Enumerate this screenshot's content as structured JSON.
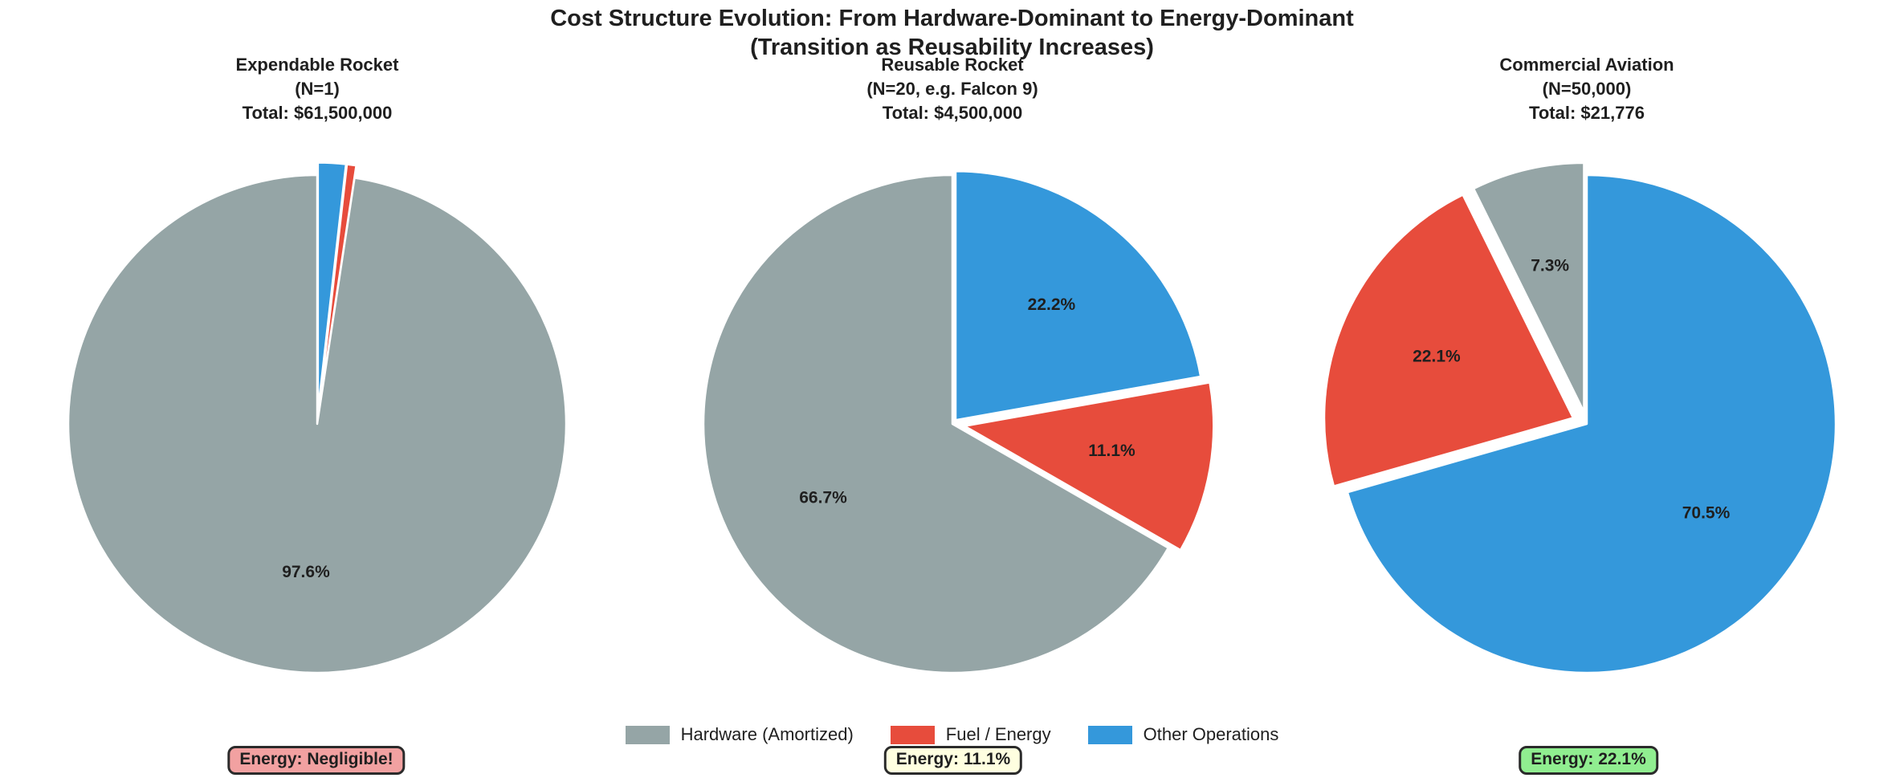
{
  "suptitle": [
    "Cost Structure Evolution: From Hardware-Dominant to Energy-Dominant",
    "(Transition as Reusability Increases)"
  ],
  "palette": [
    "#95a5a6",
    "#e74c3c",
    "#3498db"
  ],
  "legend": {
    "items": [
      {
        "label": "Hardware (Amortized)",
        "color": "#95a5a6"
      },
      {
        "label": "Fuel / Energy",
        "color": "#e74c3c"
      },
      {
        "label": "Other Operations",
        "color": "#3498db"
      }
    ]
  },
  "chart_data": [
    {
      "type": "pie",
      "title": [
        "Expendable Rocket",
        "(N=1)",
        "Total: $61,500,000"
      ],
      "categories": [
        "Hardware (Amortized)",
        "Fuel / Energy",
        "Other Operations"
      ],
      "values": [
        97.6,
        0.6,
        1.8
      ],
      "slice_labels": [
        "97.6%",
        null,
        null
      ],
      "explode": [
        0,
        0.05,
        0.05
      ],
      "start_angle": 90,
      "direction": "counterclockwise",
      "annotation": {
        "text": "Energy: Negligible!",
        "bg": "#f2a1a1",
        "border": "#2b2b2b"
      }
    },
    {
      "type": "pie",
      "title": [
        "Reusable Rocket",
        "(N=20, e.g. Falcon 9)",
        "Total: $4,500,000"
      ],
      "categories": [
        "Hardware (Amortized)",
        "Fuel / Energy",
        "Other Operations"
      ],
      "values": [
        66.7,
        11.1,
        22.2
      ],
      "slice_labels": [
        "66.7%",
        "11.1%",
        "22.2%"
      ],
      "explode": [
        0,
        0.05,
        0.02
      ],
      "start_angle": 90,
      "direction": "counterclockwise",
      "annotation": {
        "text": "Energy: 11.1%",
        "bg": "#ffffe0",
        "border": "#2b2b2b"
      }
    },
    {
      "type": "pie",
      "title": [
        "Commercial Aviation",
        "(N=50,000)",
        "Total: $21,776"
      ],
      "categories": [
        "Hardware (Amortized)",
        "Fuel / Energy",
        "Other Operations"
      ],
      "values": [
        7.3,
        22.1,
        70.5
      ],
      "slice_labels": [
        "7.3%",
        "22.1%",
        "70.5%"
      ],
      "explode": [
        0.05,
        0.06,
        0
      ],
      "start_angle": 90,
      "direction": "counterclockwise",
      "annotation": {
        "text": "Energy: 22.1%",
        "bg": "#90ee90",
        "border": "#2b2b2b"
      }
    }
  ]
}
